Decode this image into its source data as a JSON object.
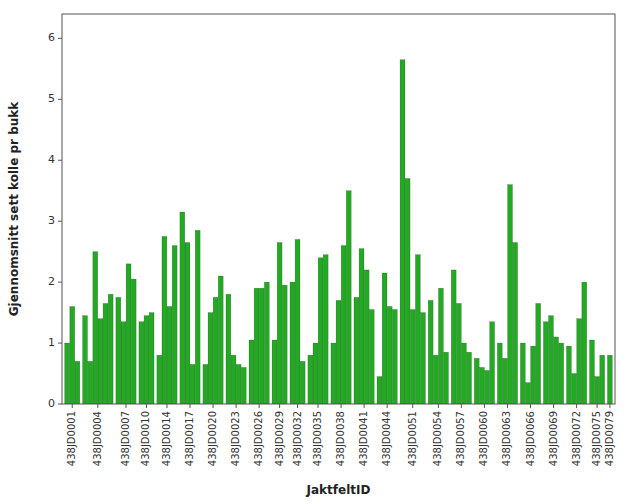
{
  "chart_data": {
    "type": "bar",
    "xlabel": "JaktfeltID",
    "ylabel": "Gjennomsnitt sett kolle pr bukk",
    "categories": [
      "438JD0001",
      "438JD0004",
      "438JD0007",
      "438JD0010",
      "438JD0014",
      "438JD0017",
      "438JD0020",
      "438JD0023",
      "438JD0026",
      "438JD0029",
      "438JD0032",
      "438JD0035",
      "438JD0038",
      "438JD0041",
      "438JD0044",
      "438JD0051",
      "438JD0054",
      "438JD0057",
      "438JD0060",
      "438JD0063",
      "438JD0066",
      "438JD0069",
      "438JD0072",
      "438JD0075",
      "438JD0079"
    ],
    "values": [
      [
        1.0,
        1.6,
        0.7
      ],
      [
        1.45,
        0.7,
        2.5,
        1.4,
        1.65,
        1.8
      ],
      [
        1.75,
        1.35,
        2.3,
        2.05
      ],
      [
        1.35,
        1.45,
        1.5
      ],
      [
        0.8,
        2.75,
        1.6,
        2.6
      ],
      [
        3.15,
        2.65,
        0.65,
        2.85
      ],
      [
        0.65,
        1.5,
        1.75,
        2.1
      ],
      [
        1.8,
        0.8,
        0.65,
        0.6
      ],
      [
        1.05,
        1.9,
        1.9,
        2.0
      ],
      [
        1.05,
        2.65,
        1.95
      ],
      [
        2.0,
        2.7,
        0.7
      ],
      [
        0.8,
        1.0,
        2.4,
        2.45
      ],
      [
        1.0,
        1.7,
        2.6,
        3.5
      ],
      [
        1.75,
        2.55,
        2.2,
        1.55
      ],
      [
        0.45,
        2.15,
        1.6,
        1.55
      ],
      [
        5.65,
        3.7,
        1.55,
        2.45,
        1.5
      ],
      [
        1.7,
        0.8,
        1.9,
        0.85
      ],
      [
        2.2,
        1.65,
        1.0,
        0.85
      ],
      [
        0.75,
        0.6,
        0.55,
        1.35
      ],
      [
        1.0,
        0.75,
        3.6,
        2.65
      ],
      [
        1.0,
        0.35,
        0.95,
        1.65
      ],
      [
        1.35,
        1.45,
        1.1,
        1.0
      ],
      [
        0.95,
        0.5,
        1.4,
        2.0
      ],
      [
        1.05,
        0.45,
        0.8
      ],
      [
        0.8
      ]
    ],
    "color": "#22aa22",
    "ylim": [
      0.0,
      6.4
    ],
    "yticks": [
      0.0,
      1.0,
      2.0,
      3.0,
      4.0,
      5.0,
      6.0
    ],
    "grid": false
  }
}
